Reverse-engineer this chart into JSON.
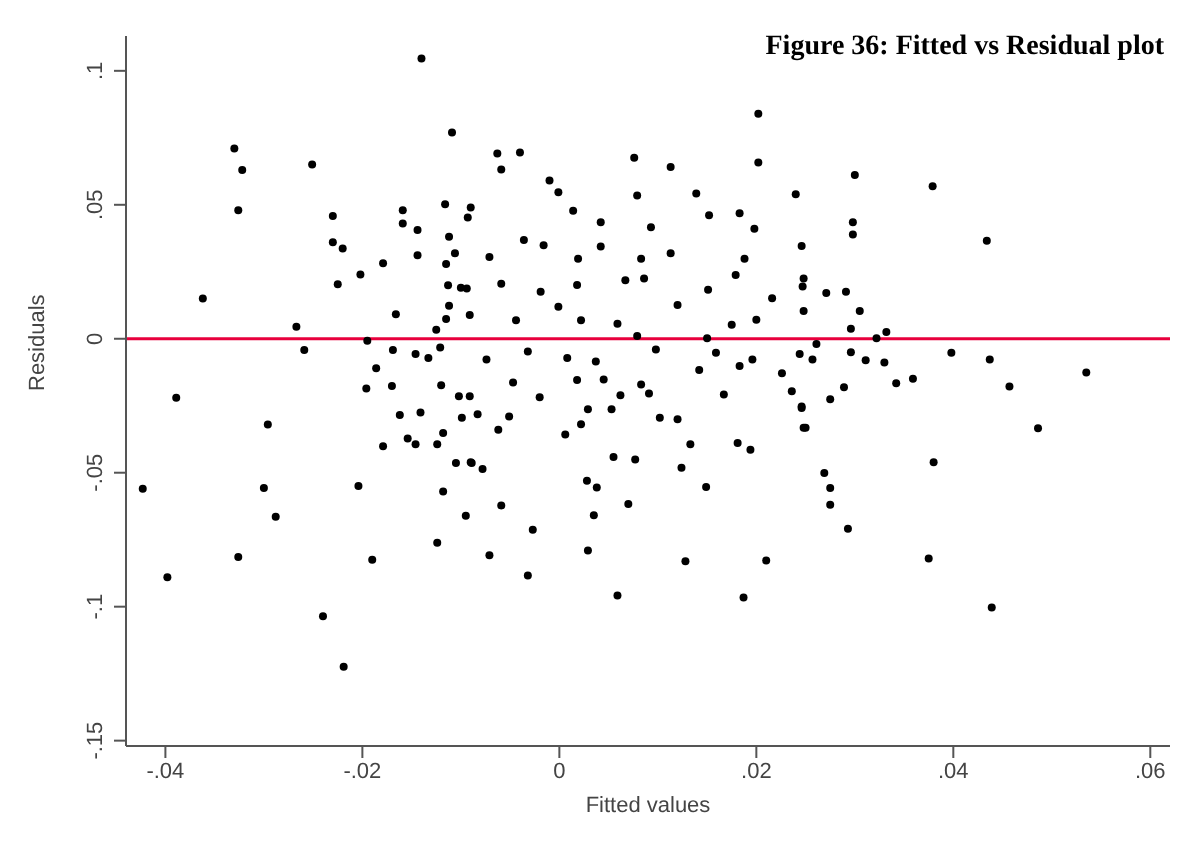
{
  "chart_data": {
    "type": "scatter",
    "title": "Figure 36: Fitted vs Residual plot",
    "xlabel": "Fitted values",
    "ylabel": "Residuals",
    "x": [
      -0.014,
      -0.0109,
      -0.033,
      -0.0322,
      -0.0326,
      -0.0251,
      -0.0362,
      -0.0389,
      -0.0423,
      -0.0398,
      -0.0326,
      -0.0296,
      -0.03,
      -0.0288,
      -0.0267,
      -0.0259,
      -0.024,
      -0.0219,
      -0.023,
      -0.023,
      -0.022,
      -0.0225,
      -0.0202,
      -0.0195,
      -0.0186,
      -0.0196,
      -0.0204,
      -0.019,
      -0.0179,
      -0.0166,
      -0.0169,
      -0.017,
      -0.0179,
      -0.0162,
      -0.0159,
      -0.0159,
      -0.0144,
      -0.0144,
      -0.0146,
      -0.0133,
      -0.0141,
      -0.0154,
      -0.0146,
      -0.0124,
      -0.0118,
      -0.0105,
      -0.0118,
      -0.0095,
      -0.0124,
      -0.012,
      -0.0102,
      -0.0099,
      -0.0116,
      -0.0112,
      -0.0106,
      -0.0115,
      -0.0113,
      -0.01,
      -0.0112,
      -0.0115,
      -0.0125,
      -0.0121,
      -0.0091,
      -0.0089,
      -0.0093,
      -0.009,
      0.0202,
      0.0202,
      -0.0063,
      -0.004,
      -0.0059,
      0.0076,
      0.0113,
      -0.001,
      0.0139,
      0.024,
      -0.0001,
      0.0014,
      0.0042,
      0.0079,
      0.0152,
      0.0183,
      0.0198,
      0.0246,
      -0.0036,
      -0.0071,
      -0.0016,
      0.0042,
      0.0019,
      0.0093,
      0.0113,
      0.0083,
      0.0188,
      0.0179,
      -0.0094,
      -0.0059,
      -0.0019,
      0.0018,
      0.0067,
      0.0086,
      0.012,
      0.0151,
      0.0216,
      0.0247,
      -0.0091,
      -0.0044,
      -0.0001,
      0.0022,
      0.0059,
      0.0175,
      0.02,
      0.0079,
      -0.0074,
      -0.0032,
      0.0008,
      0.0037,
      0.0098,
      0.015,
      0.0159,
      0.0196,
      0.0226,
      -0.0047,
      0.0018,
      0.0045,
      0.0083,
      0.0142,
      0.0183,
      -0.002,
      0.0062,
      0.0091,
      0.0167,
      0.0236,
      -0.0083,
      -0.0051,
      0.0029,
      0.0053,
      0.0102,
      0.012,
      0.0246,
      -0.0062,
      0.0006,
      0.0022,
      0.0133,
      0.025,
      0.0181,
      0.0194,
      -0.009,
      -0.0078,
      0.0055,
      0.0077,
      0.0124,
      0.0028,
      0.0038,
      0.0149,
      -0.0059,
      0.0035,
      0.007,
      -0.0027,
      -0.0071,
      -0.0032,
      0.0029,
      0.0059,
      0.0128,
      0.0187,
      0.021,
      0.03,
      0.0379,
      0.0298,
      0.0298,
      0.0434,
      0.0248,
      0.0271,
      0.0291,
      0.0305,
      0.0248,
      0.0296,
      0.0322,
      0.0332,
      0.0261,
      0.0244,
      0.0257,
      0.0296,
      0.0311,
      0.033,
      0.0398,
      0.0437,
      0.0342,
      0.0359,
      0.0289,
      0.0275,
      0.0457,
      0.0535,
      0.0246,
      0.0248,
      0.0486,
      0.038,
      0.0269,
      0.0275,
      0.0275,
      0.0293,
      0.0375,
      0.0439
    ],
    "values": [
      0.1046,
      0.077,
      0.071,
      0.063,
      0.048,
      0.065,
      0.015,
      -0.022,
      -0.056,
      -0.089,
      -0.0815,
      -0.032,
      -0.0557,
      -0.0664,
      0.0045,
      -0.0042,
      -0.1036,
      -0.1224,
      0.0458,
      0.036,
      0.0337,
      0.0203,
      0.024,
      -0.0007,
      -0.011,
      -0.0186,
      -0.055,
      -0.0825,
      0.0282,
      0.0091,
      -0.0042,
      -0.0176,
      -0.0401,
      -0.0285,
      0.048,
      0.043,
      0.0406,
      0.0312,
      -0.0057,
      -0.0072,
      -0.0275,
      -0.0372,
      -0.0394,
      -0.0394,
      -0.0352,
      -0.0464,
      -0.057,
      -0.0661,
      -0.0761,
      -0.0174,
      -0.0215,
      -0.0295,
      0.0502,
      0.0381,
      0.0319,
      0.0279,
      0.02,
      0.019,
      0.0123,
      0.0074,
      0.0034,
      -0.0033,
      -0.0215,
      -0.0464,
      0.0453,
      0.049,
      0.084,
      0.0658,
      0.0691,
      0.0695,
      0.0632,
      0.0676,
      0.0641,
      0.0591,
      0.0542,
      0.0539,
      0.0547,
      0.0478,
      0.0435,
      0.0535,
      0.0461,
      0.0468,
      0.0411,
      0.0346,
      0.0369,
      0.0305,
      0.0349,
      0.0344,
      0.0299,
      0.0416,
      0.0319,
      0.0299,
      0.0299,
      0.0238,
      0.0188,
      0.0205,
      0.0175,
      0.0201,
      0.0218,
      0.0225,
      0.0126,
      0.0183,
      0.0151,
      0.0195,
      0.0089,
      0.0069,
      0.0119,
      0.0069,
      0.0056,
      0.0052,
      0.0071,
      0.001,
      -0.0077,
      -0.0048,
      -0.0072,
      -0.0085,
      -0.004,
      0.0002,
      -0.0052,
      -0.0077,
      -0.0129,
      -0.0163,
      -0.0154,
      -0.0152,
      -0.0171,
      -0.0117,
      -0.0102,
      -0.0218,
      -0.0211,
      -0.0204,
      -0.0208,
      -0.0196,
      -0.0282,
      -0.029,
      -0.0263,
      -0.0263,
      -0.0295,
      -0.03,
      -0.0258,
      -0.034,
      -0.0357,
      -0.0319,
      -0.0394,
      -0.0332,
      -0.0389,
      -0.0414,
      -0.0461,
      -0.0486,
      -0.0441,
      -0.0451,
      -0.0481,
      -0.053,
      -0.0555,
      -0.0553,
      -0.0622,
      -0.0659,
      -0.0617,
      -0.0713,
      -0.0808,
      -0.0884,
      -0.079,
      -0.0958,
      -0.083,
      -0.0966,
      -0.0828,
      0.0611,
      0.0569,
      0.0435,
      0.0389,
      0.0366,
      0.0225,
      0.0171,
      0.0175,
      0.0104,
      0.0104,
      0.0037,
      0.0002,
      0.0025,
      -0.002,
      -0.0057,
      -0.0077,
      -0.005,
      -0.008,
      -0.0089,
      -0.0052,
      -0.0077,
      -0.0166,
      -0.0149,
      -0.0181,
      -0.0226,
      -0.0178,
      -0.0126,
      -0.0253,
      -0.0332,
      -0.0334,
      -0.0461,
      -0.0501,
      -0.0557,
      -0.062,
      -0.0709,
      -0.082,
      -0.1003
    ],
    "color": "#000000",
    "marker": "circle",
    "xlim": [
      -0.044,
      0.062
    ],
    "ylim": [
      -0.152,
      0.113
    ],
    "xticks": [
      {
        "value": -0.04,
        "label": "-.04"
      },
      {
        "value": -0.02,
        "label": "-.02"
      },
      0,
      {
        "value": 0.02,
        "label": ".02"
      },
      {
        "value": 0.04,
        "label": ".04"
      },
      {
        "value": 0.06,
        "label": ".06"
      }
    ],
    "yticks": [
      {
        "value": -0.15,
        "label": "-.15"
      },
      {
        "value": -0.1,
        "label": "-.1"
      },
      {
        "value": -0.05,
        "label": "-.05"
      },
      0,
      {
        "value": 0.05,
        "label": ".05"
      },
      {
        "value": 0.1,
        "label": ".1"
      }
    ],
    "ref_lines": [
      {
        "axis": "y",
        "value": 0,
        "color": "#e8003d"
      }
    ],
    "grid": false,
    "legend": false
  }
}
